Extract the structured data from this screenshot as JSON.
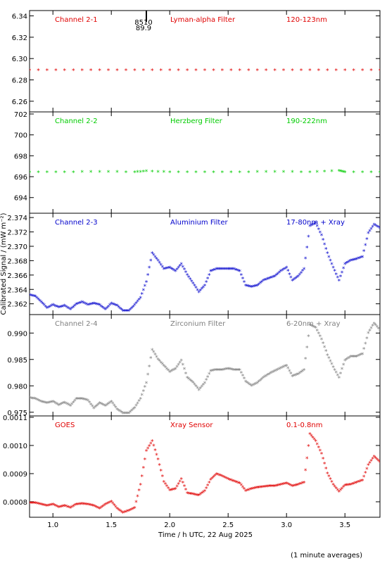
{
  "chart_data": {
    "type": "scatter",
    "xlabel": "Time / h UTC, 22 Aug 2025",
    "ylabel": "Calibrated Signal / (mW m⁻²)",
    "footnote": "(1 minute averages)",
    "xlim": [
      0.8,
      3.8
    ],
    "x_ticks": [
      "1.0",
      "1.5",
      "2.0",
      "2.5",
      "3.0",
      "3.5"
    ],
    "marker_note": [
      "8510",
      "89.9"
    ],
    "marker_x": 1.8,
    "panels": [
      {
        "id": "ch21",
        "channel": "Channel 2-1",
        "filter": "Lyman-alpha Filter",
        "band": "120-123nm",
        "color": "#e00000",
        "ylim": [
          6.25,
          6.345
        ],
        "yticks": [
          "6.26",
          "6.28",
          "6.30",
          "6.32",
          "6.34"
        ],
        "series": [
          [
            0.8,
            6.289
          ],
          [
            1.1,
            6.289
          ],
          [
            1.4,
            6.289
          ],
          [
            1.7,
            6.289
          ],
          [
            2.0,
            6.289
          ],
          [
            2.3,
            6.289
          ],
          [
            2.6,
            6.289
          ],
          [
            2.9,
            6.289
          ],
          [
            3.2,
            6.289
          ],
          [
            3.5,
            6.289
          ],
          [
            3.8,
            6.289
          ]
        ]
      },
      {
        "id": "ch22",
        "channel": "Channel 2-2",
        "filter": "Herzberg Filter",
        "band": "190-222nm",
        "color": "#00cc00",
        "ylim": [
          692.5,
          702.2
        ],
        "yticks": [
          "694",
          "696",
          "698",
          "700",
          "702"
        ],
        "series": [
          [
            0.8,
            696.4
          ],
          [
            1.1,
            696.4
          ],
          [
            1.4,
            696.45
          ],
          [
            1.7,
            696.4
          ],
          [
            1.8,
            696.5
          ],
          [
            2.0,
            696.4
          ],
          [
            2.3,
            696.4
          ],
          [
            2.6,
            696.4
          ],
          [
            2.9,
            696.45
          ],
          [
            3.2,
            696.4
          ],
          [
            3.45,
            696.55
          ],
          [
            3.5,
            696.4
          ],
          [
            3.8,
            696.4
          ]
        ]
      },
      {
        "id": "ch23",
        "channel": "Channel 2-3",
        "filter": "Aluminium Filter",
        "band": "17-80nm + Xray",
        "color": "#0000cc",
        "ylim": [
          2.3605,
          2.3746
        ],
        "yticks": [
          "2.362",
          "2.364",
          "2.366",
          "2.368",
          "2.370",
          "2.372",
          "2.374"
        ],
        "series": [
          [
            0.8,
            2.3632
          ],
          [
            0.85,
            2.363
          ],
          [
            0.9,
            2.3622
          ],
          [
            0.95,
            2.3614
          ],
          [
            1.0,
            2.3618
          ],
          [
            1.05,
            2.3615
          ],
          [
            1.1,
            2.3617
          ],
          [
            1.15,
            2.3612
          ],
          [
            1.2,
            2.3619
          ],
          [
            1.25,
            2.3622
          ],
          [
            1.3,
            2.3618
          ],
          [
            1.35,
            2.362
          ],
          [
            1.4,
            2.3618
          ],
          [
            1.45,
            2.3612
          ],
          [
            1.5,
            2.362
          ],
          [
            1.55,
            2.3617
          ],
          [
            1.6,
            2.361
          ],
          [
            1.65,
            2.361
          ],
          [
            1.7,
            2.3618
          ],
          [
            1.75,
            2.3628
          ],
          [
            1.8,
            2.365
          ],
          [
            1.85,
            2.369
          ],
          [
            1.9,
            2.368
          ],
          [
            1.95,
            2.3668
          ],
          [
            2.0,
            2.367
          ],
          [
            2.05,
            2.3665
          ],
          [
            2.1,
            2.3675
          ],
          [
            2.15,
            2.366
          ],
          [
            2.2,
            2.3648
          ],
          [
            2.25,
            2.3636
          ],
          [
            2.3,
            2.3645
          ],
          [
            2.35,
            2.3665
          ],
          [
            2.4,
            2.3668
          ],
          [
            2.45,
            2.3668
          ],
          [
            2.5,
            2.3668
          ],
          [
            2.55,
            2.3668
          ],
          [
            2.6,
            2.3665
          ],
          [
            2.65,
            2.3645
          ],
          [
            2.7,
            2.3643
          ],
          [
            2.75,
            2.3645
          ],
          [
            2.8,
            2.3652
          ],
          [
            2.85,
            2.3655
          ],
          [
            2.9,
            2.3658
          ],
          [
            2.95,
            2.3665
          ],
          [
            3.0,
            2.367
          ],
          [
            3.05,
            2.3652
          ],
          [
            3.1,
            2.3658
          ],
          [
            3.15,
            2.3668
          ],
          [
            3.2,
            2.3728
          ],
          [
            3.25,
            2.3732
          ],
          [
            3.3,
            2.3715
          ],
          [
            3.35,
            2.369
          ],
          [
            3.4,
            2.367
          ],
          [
            3.45,
            2.3652
          ],
          [
            3.5,
            2.3675
          ],
          [
            3.55,
            2.368
          ],
          [
            3.6,
            2.3682
          ],
          [
            3.65,
            2.3685
          ],
          [
            3.7,
            2.3718
          ],
          [
            3.75,
            2.373
          ],
          [
            3.8,
            2.3725
          ]
        ]
      },
      {
        "id": "ch24",
        "channel": "Channel 2-4",
        "filter": "Zirconium Filter",
        "band": "6-20nm + Xray",
        "color": "#808080",
        "ylim": [
          0.9743,
          0.9935
        ],
        "yticks": [
          "0.975",
          "0.980",
          "0.985",
          "0.990"
        ],
        "series": [
          [
            0.8,
            0.9777
          ],
          [
            0.85,
            0.9775
          ],
          [
            0.9,
            0.977
          ],
          [
            0.95,
            0.9767
          ],
          [
            1.0,
            0.977
          ],
          [
            1.05,
            0.9763
          ],
          [
            1.1,
            0.9768
          ],
          [
            1.15,
            0.9762
          ],
          [
            1.2,
            0.9775
          ],
          [
            1.25,
            0.9775
          ],
          [
            1.3,
            0.9772
          ],
          [
            1.35,
            0.9757
          ],
          [
            1.4,
            0.9767
          ],
          [
            1.45,
            0.9762
          ],
          [
            1.5,
            0.977
          ],
          [
            1.55,
            0.9755
          ],
          [
            1.6,
            0.9748
          ],
          [
            1.65,
            0.9748
          ],
          [
            1.7,
            0.9758
          ],
          [
            1.75,
            0.9775
          ],
          [
            1.8,
            0.9805
          ],
          [
            1.85,
            0.9868
          ],
          [
            1.9,
            0.985
          ],
          [
            1.95,
            0.9838
          ],
          [
            2.0,
            0.9826
          ],
          [
            2.05,
            0.9832
          ],
          [
            2.1,
            0.9848
          ],
          [
            2.15,
            0.9815
          ],
          [
            2.2,
            0.9806
          ],
          [
            2.25,
            0.9792
          ],
          [
            2.3,
            0.9805
          ],
          [
            2.35,
            0.9828
          ],
          [
            2.4,
            0.983
          ],
          [
            2.45,
            0.983
          ],
          [
            2.5,
            0.9832
          ],
          [
            2.55,
            0.983
          ],
          [
            2.6,
            0.983
          ],
          [
            2.65,
            0.9808
          ],
          [
            2.7,
            0.98
          ],
          [
            2.75,
            0.9805
          ],
          [
            2.8,
            0.9815
          ],
          [
            2.85,
            0.9822
          ],
          [
            2.9,
            0.9828
          ],
          [
            2.95,
            0.9833
          ],
          [
            3.0,
            0.9838
          ],
          [
            3.05,
            0.9818
          ],
          [
            3.1,
            0.9822
          ],
          [
            3.15,
            0.983
          ],
          [
            3.2,
            0.9915
          ],
          [
            3.25,
            0.991
          ],
          [
            3.3,
            0.9888
          ],
          [
            3.35,
            0.9858
          ],
          [
            3.4,
            0.9835
          ],
          [
            3.45,
            0.9815
          ],
          [
            3.5,
            0.9848
          ],
          [
            3.55,
            0.9855
          ],
          [
            3.6,
            0.9855
          ],
          [
            3.65,
            0.986
          ],
          [
            3.7,
            0.99
          ],
          [
            3.75,
            0.9918
          ],
          [
            3.8,
            0.9905
          ]
        ]
      },
      {
        "id": "goes",
        "channel": "GOES",
        "filter": "Xray Sensor",
        "band": "0.1-0.8nm",
        "color": "#e00000",
        "ylim": [
          0.000745,
          0.001105
        ],
        "yticks": [
          "0.0008",
          "0.0009",
          "0.0010",
          "0.0011"
        ],
        "series": [
          [
            0.8,
            0.000795
          ],
          [
            0.85,
            0.000795
          ],
          [
            0.9,
            0.00079
          ],
          [
            0.95,
            0.000785
          ],
          [
            1.0,
            0.00079
          ],
          [
            1.05,
            0.00078
          ],
          [
            1.1,
            0.000785
          ],
          [
            1.15,
            0.000778
          ],
          [
            1.2,
            0.00079
          ],
          [
            1.25,
            0.000792
          ],
          [
            1.3,
            0.00079
          ],
          [
            1.35,
            0.000785
          ],
          [
            1.4,
            0.000775
          ],
          [
            1.45,
            0.00079
          ],
          [
            1.5,
            0.0008
          ],
          [
            1.55,
            0.000775
          ],
          [
            1.6,
            0.00076
          ],
          [
            1.65,
            0.000768
          ],
          [
            1.7,
            0.000778
          ],
          [
            1.75,
            0.00086
          ],
          [
            1.8,
            0.00098
          ],
          [
            1.85,
            0.001015
          ],
          [
            1.9,
            0.00095
          ],
          [
            1.95,
            0.00087
          ],
          [
            2.0,
            0.00084
          ],
          [
            2.05,
            0.000845
          ],
          [
            2.1,
            0.00088
          ],
          [
            2.15,
            0.00083
          ],
          [
            2.2,
            0.000826
          ],
          [
            2.25,
            0.000822
          ],
          [
            2.3,
            0.000838
          ],
          [
            2.35,
            0.000878
          ],
          [
            2.4,
            0.000898
          ],
          [
            2.45,
            0.00089
          ],
          [
            2.5,
            0.00088
          ],
          [
            2.55,
            0.000872
          ],
          [
            2.6,
            0.000865
          ],
          [
            2.65,
            0.000838
          ],
          [
            2.7,
            0.000845
          ],
          [
            2.75,
            0.00085
          ],
          [
            2.8,
            0.000852
          ],
          [
            2.85,
            0.000855
          ],
          [
            2.9,
            0.000855
          ],
          [
            2.95,
            0.00086
          ],
          [
            3.0,
            0.000865
          ],
          [
            3.05,
            0.000855
          ],
          [
            3.1,
            0.00086
          ],
          [
            3.15,
            0.000868
          ],
          [
            3.2,
            0.00104
          ],
          [
            3.25,
            0.001015
          ],
          [
            3.3,
            0.00097
          ],
          [
            3.35,
            0.0009
          ],
          [
            3.4,
            0.00086
          ],
          [
            3.45,
            0.000835
          ],
          [
            3.5,
            0.000858
          ],
          [
            3.55,
            0.00086
          ],
          [
            3.6,
            0.000868
          ],
          [
            3.65,
            0.000875
          ],
          [
            3.7,
            0.00093
          ],
          [
            3.75,
            0.00096
          ],
          [
            3.8,
            0.00094
          ]
        ]
      }
    ]
  }
}
